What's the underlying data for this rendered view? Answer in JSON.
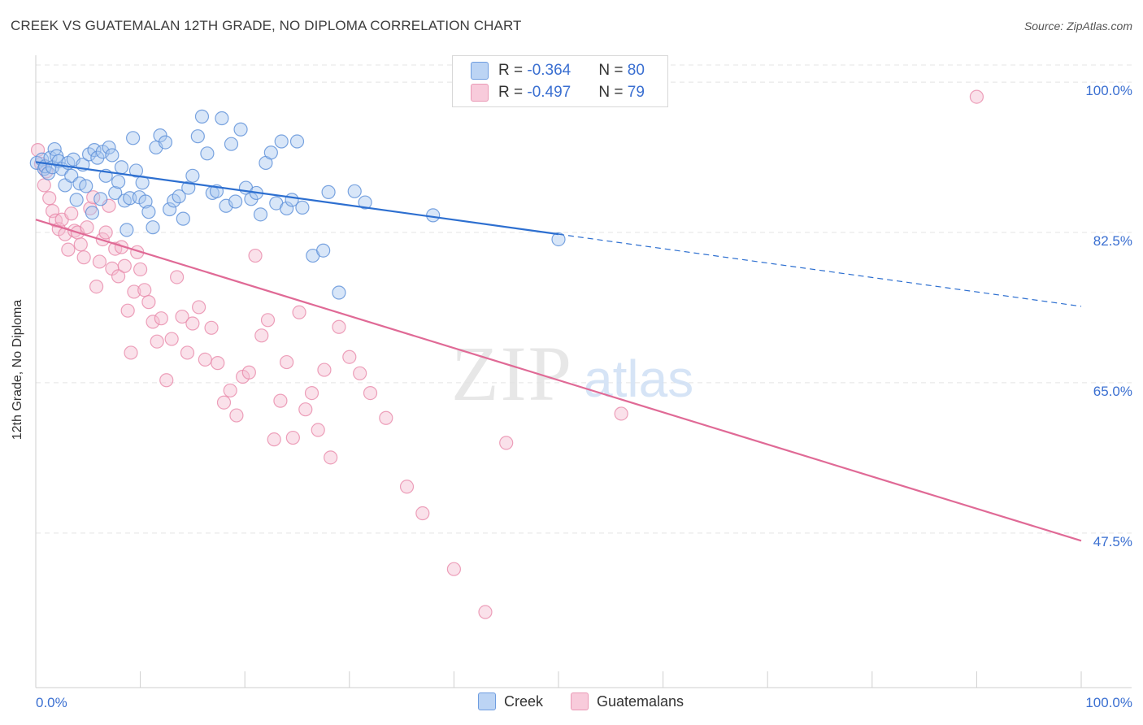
{
  "header": {
    "title": "CREEK VS GUATEMALAN 12TH GRADE, NO DIPLOMA CORRELATION CHART",
    "source": "Source: ZipAtlas.com"
  },
  "legend": {
    "creek": {
      "r_label": "R = ",
      "r_value": "-0.364",
      "n_label": "N = ",
      "n_value": "80"
    },
    "guatemalans": {
      "r_label": "R = ",
      "r_value": "-0.497",
      "n_label": "N = ",
      "n_value": "79"
    }
  },
  "bottom_legend": {
    "creek": "Creek",
    "guatemalans": "Guatemalans"
  },
  "watermark": {
    "zip": "ZIP",
    "atlas": "atlas"
  },
  "colors": {
    "creek_fill": "#a9c8f0",
    "creek_stroke": "#5b8fd8",
    "creek_line": "#2d6fd0",
    "guat_fill": "#f5bcd0",
    "guat_stroke": "#e88aaa",
    "guat_line": "#e06a96",
    "tick_label": "#3a6fd1",
    "grid": "#e4e4e4"
  },
  "chart_data": {
    "type": "scatter",
    "title": "CREEK VS GUATEMALAN 12TH GRADE, NO DIPLOMA CORRELATION CHART",
    "xlabel": "",
    "ylabel": "12th Grade, No Diploma",
    "xlim": [
      0,
      100
    ],
    "ylim": [
      29.5,
      102
    ],
    "x_tick_labels": [
      "0.0%",
      "100.0%"
    ],
    "y_ticks": [
      100.0,
      82.5,
      65.0,
      47.5
    ],
    "y_tick_labels": [
      "100.0%",
      "82.5%",
      "65.0%",
      "47.5%"
    ],
    "grid": true,
    "legend_placement": "top-center",
    "series": [
      {
        "name": "Creek",
        "r": -0.364,
        "n": 80,
        "trend": {
          "x0": 0,
          "y0": 90.7,
          "x1": 50,
          "y1": 82.3,
          "x_dash_end": 100,
          "y_dash_end": 73.9
        },
        "x": [
          0.1,
          0.6,
          0.8,
          0.9,
          1.2,
          1.4,
          1.6,
          1.8,
          2.0,
          2.2,
          2.5,
          2.8,
          3.1,
          3.4,
          3.6,
          3.9,
          4.2,
          4.5,
          4.8,
          5.1,
          5.4,
          5.6,
          5.9,
          6.2,
          6.4,
          6.7,
          7.0,
          7.3,
          7.6,
          7.9,
          8.2,
          8.5,
          8.7,
          9.0,
          9.3,
          9.6,
          9.9,
          10.2,
          10.5,
          10.8,
          11.2,
          11.5,
          11.9,
          12.4,
          12.8,
          13.2,
          13.7,
          14.1,
          14.6,
          15.0,
          15.5,
          15.9,
          16.4,
          16.9,
          17.3,
          17.8,
          18.2,
          18.7,
          19.1,
          19.6,
          20.1,
          20.6,
          21.1,
          21.5,
          22.0,
          22.5,
          23.0,
          23.5,
          24.0,
          24.5,
          25.0,
          25.5,
          26.5,
          27.5,
          28.0,
          29.0,
          30.5,
          31.5,
          38.0,
          50.0
        ],
        "y": [
          90.6,
          91.0,
          89.9,
          90.2,
          89.4,
          91.2,
          90.1,
          92.2,
          91.4,
          90.8,
          89.9,
          88.0,
          90.6,
          89.1,
          91.0,
          86.3,
          88.2,
          90.4,
          87.9,
          91.6,
          84.8,
          92.1,
          91.2,
          86.4,
          91.9,
          89.1,
          92.4,
          91.5,
          87.1,
          88.4,
          90.1,
          86.2,
          82.8,
          86.5,
          93.5,
          89.7,
          86.6,
          88.3,
          86.1,
          84.9,
          83.1,
          92.4,
          93.8,
          93.0,
          85.2,
          86.2,
          86.7,
          84.1,
          87.7,
          89.1,
          93.7,
          96.0,
          91.7,
          87.1,
          87.3,
          95.8,
          85.6,
          92.8,
          86.1,
          94.5,
          87.7,
          86.4,
          87.1,
          84.6,
          90.6,
          91.8,
          85.9,
          93.1,
          85.3,
          86.3,
          93.1,
          85.4,
          79.8,
          80.4,
          87.2,
          75.5,
          87.3,
          86.0,
          84.5,
          81.7
        ]
      },
      {
        "name": "Guatemalans",
        "r": -0.497,
        "n": 79,
        "trend": {
          "x0": 0,
          "y0": 84.0,
          "x1": 100,
          "y1": 46.6
        },
        "x": [
          0.2,
          0.5,
          0.8,
          1.0,
          1.3,
          1.6,
          1.9,
          2.2,
          2.5,
          2.8,
          3.1,
          3.4,
          3.7,
          4.0,
          4.3,
          4.6,
          4.9,
          5.2,
          5.5,
          5.8,
          6.1,
          6.4,
          6.7,
          7.0,
          7.3,
          7.6,
          7.9,
          8.2,
          8.5,
          8.8,
          9.1,
          9.4,
          9.7,
          10.0,
          10.4,
          10.8,
          11.2,
          11.6,
          12.0,
          12.5,
          13.0,
          13.5,
          14.0,
          14.5,
          15.0,
          15.6,
          16.2,
          16.8,
          17.4,
          18.0,
          18.6,
          19.2,
          19.8,
          20.4,
          21.0,
          21.6,
          22.2,
          22.8,
          23.4,
          24.0,
          24.6,
          25.2,
          25.8,
          26.4,
          27.0,
          27.6,
          28.2,
          29.0,
          30.0,
          31.0,
          32.0,
          33.5,
          35.5,
          37.0,
          40.0,
          43.0,
          45.0,
          56.0,
          90.0
        ],
        "y": [
          92.1,
          90.5,
          88.0,
          89.6,
          86.5,
          85.0,
          83.9,
          82.9,
          84.0,
          82.3,
          80.5,
          84.7,
          82.7,
          82.5,
          81.1,
          79.6,
          83.1,
          85.3,
          86.6,
          76.2,
          79.1,
          81.7,
          82.5,
          85.6,
          78.3,
          80.6,
          77.4,
          80.8,
          78.6,
          73.4,
          68.5,
          75.6,
          80.2,
          78.2,
          75.8,
          74.4,
          72.1,
          69.8,
          72.5,
          65.3,
          70.1,
          77.3,
          72.7,
          68.5,
          71.9,
          73.8,
          67.7,
          71.4,
          67.3,
          62.7,
          64.1,
          61.2,
          65.7,
          66.2,
          79.8,
          70.5,
          72.3,
          58.4,
          62.9,
          67.4,
          58.6,
          73.2,
          61.9,
          63.8,
          59.5,
          66.5,
          56.3,
          71.5,
          68.0,
          66.1,
          63.8,
          60.9,
          52.9,
          49.8,
          43.3,
          38.3,
          58.0,
          61.4,
          98.3
        ]
      }
    ]
  }
}
